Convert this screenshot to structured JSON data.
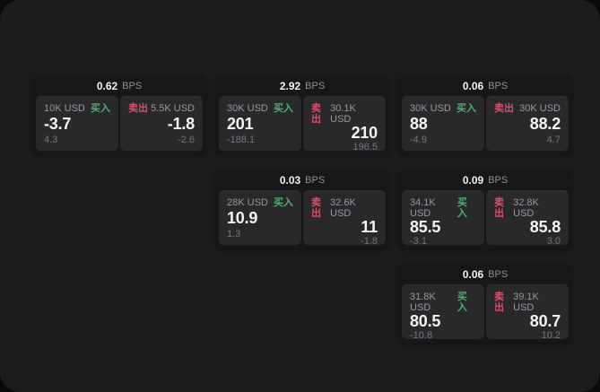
{
  "labels": {
    "bps_unit": "BPS",
    "buy": "买入",
    "sell": "卖出"
  },
  "colors": {
    "buy_green": "#4daf6e",
    "sell_red": "#d8506a",
    "panel_bg": "#1c1c1e",
    "card_bg": "#171719",
    "tile_bg": "#29292c"
  },
  "cards": [
    {
      "bps": "0.62",
      "buy": {
        "amount": "10K USD",
        "price": "-3.7",
        "delta": "4.3"
      },
      "sell": {
        "amount": "5.5K USD",
        "price": "-1.8",
        "delta": "-2.6"
      }
    },
    {
      "bps": "2.92",
      "buy": {
        "amount": "30K USD",
        "price": "201",
        "delta": "-188.1"
      },
      "sell": {
        "amount": "30.1K USD",
        "price": "210",
        "delta": "196.5"
      }
    },
    {
      "bps": "0.06",
      "buy": {
        "amount": "30K USD",
        "price": "88",
        "delta": "-4.9"
      },
      "sell": {
        "amount": "30K USD",
        "price": "88.2",
        "delta": "4.7"
      }
    },
    {
      "bps": "0.03",
      "buy": {
        "amount": "28K USD",
        "price": "10.9",
        "delta": "1.3"
      },
      "sell": {
        "amount": "32.6K USD",
        "price": "11",
        "delta": "-1.8"
      }
    },
    {
      "bps": "0.09",
      "buy": {
        "amount": "34.1K USD",
        "price": "85.5",
        "delta": "-3.1"
      },
      "sell": {
        "amount": "32.8K USD",
        "price": "85.8",
        "delta": "3.0"
      }
    },
    {
      "bps": "0.06",
      "buy": {
        "amount": "31.8K USD",
        "price": "80.5",
        "delta": "-10.8"
      },
      "sell": {
        "amount": "39.1K USD",
        "price": "80.7",
        "delta": "10.2"
      }
    }
  ]
}
